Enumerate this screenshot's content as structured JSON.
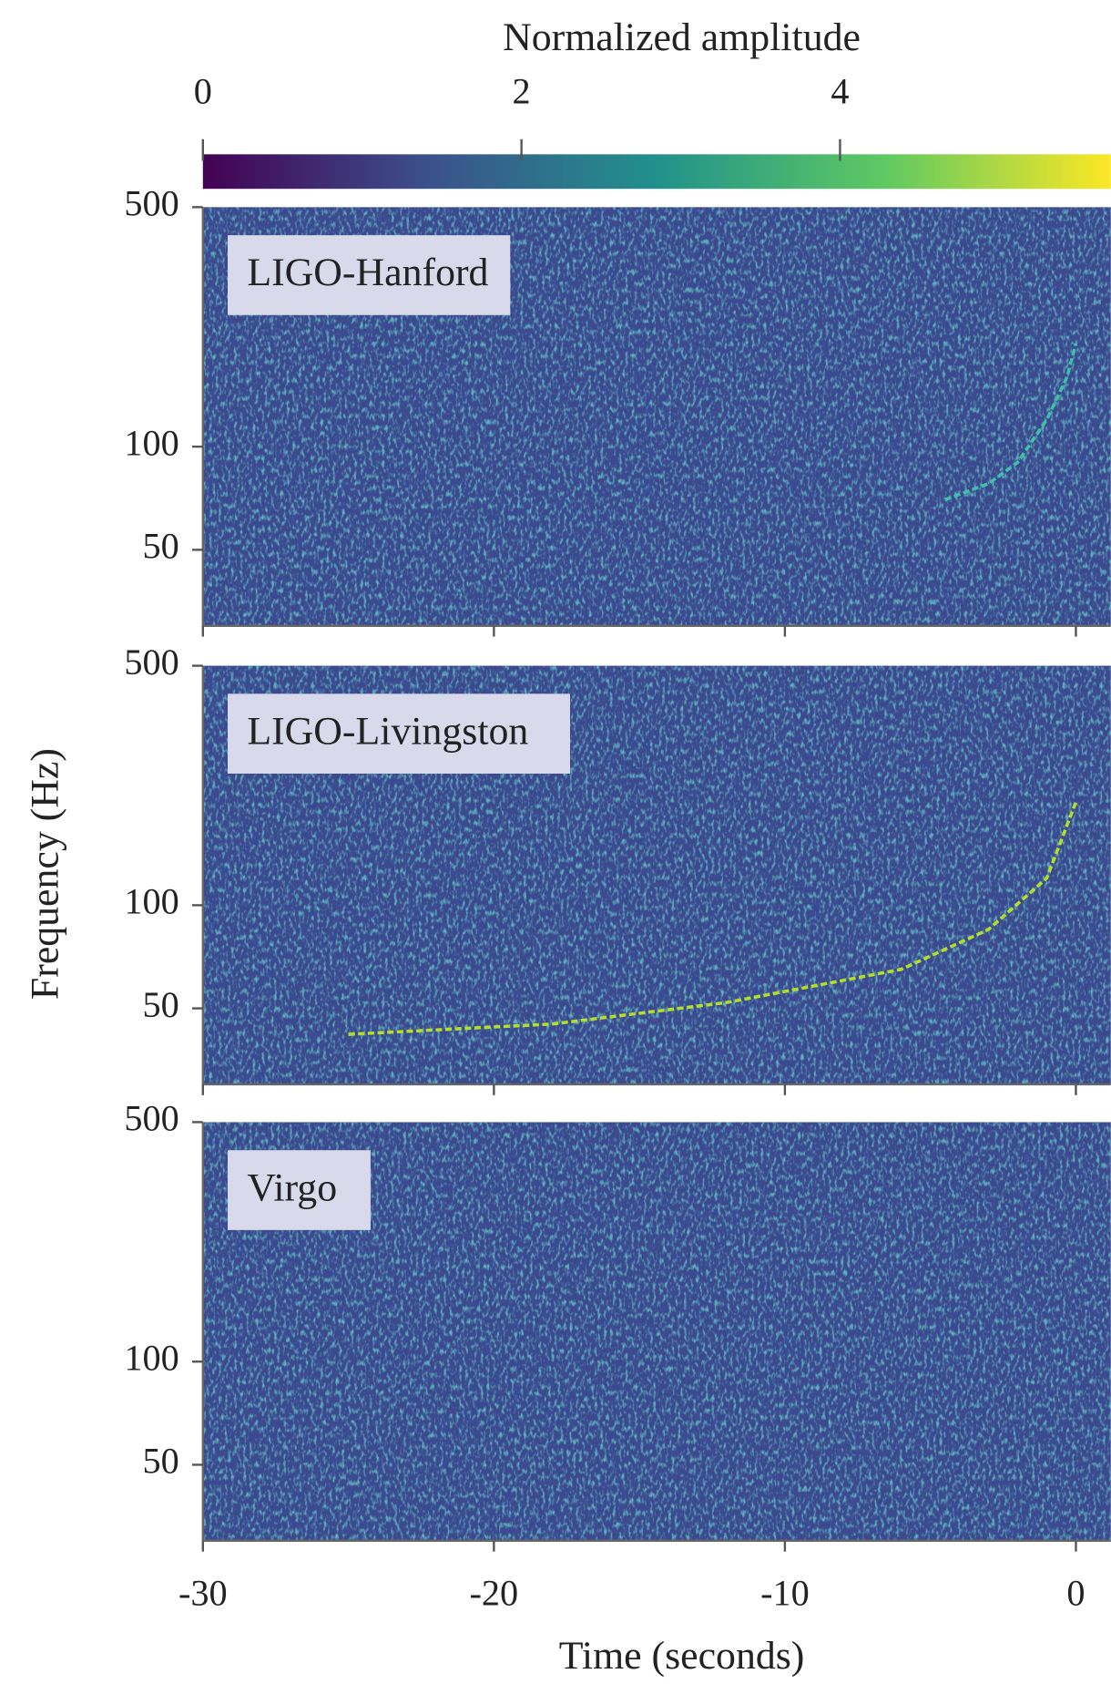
{
  "chart_data": {
    "type": "spectrogram",
    "xlabel": "Time (seconds)",
    "ylabel": "Frequency (Hz)",
    "xlim": [
      -30,
      1.2
    ],
    "xticks": [
      -30,
      -20,
      -10,
      0
    ],
    "ylim": [
      30,
      500
    ],
    "yticks": [
      50,
      100,
      500
    ],
    "yscale": "log",
    "background": "#3b4a8f",
    "colorbar": {
      "label": "Normalized amplitude",
      "lim": [
        0,
        5.7
      ],
      "ticks": [
        0,
        2,
        4
      ],
      "colors": [
        "#440154",
        "#3b528b",
        "#21918c",
        "#5ec962",
        "#fde725"
      ]
    },
    "panels": [
      {
        "name": "LIGO-Hanford",
        "color": "#3fc0a8",
        "track": {
          "x": [
            -4.5,
            -3,
            -2,
            -1,
            -0.3,
            0
          ],
          "y": [
            70,
            78,
            90,
            120,
            160,
            200
          ]
        }
      },
      {
        "name": "LIGO-Livingston",
        "color": "#b5de2b",
        "track": {
          "x": [
            -25,
            -18,
            -12,
            -6,
            -3,
            -1,
            0
          ],
          "y": [
            42,
            45,
            52,
            65,
            85,
            120,
            200
          ]
        }
      },
      {
        "name": "Virgo"
      }
    ]
  }
}
